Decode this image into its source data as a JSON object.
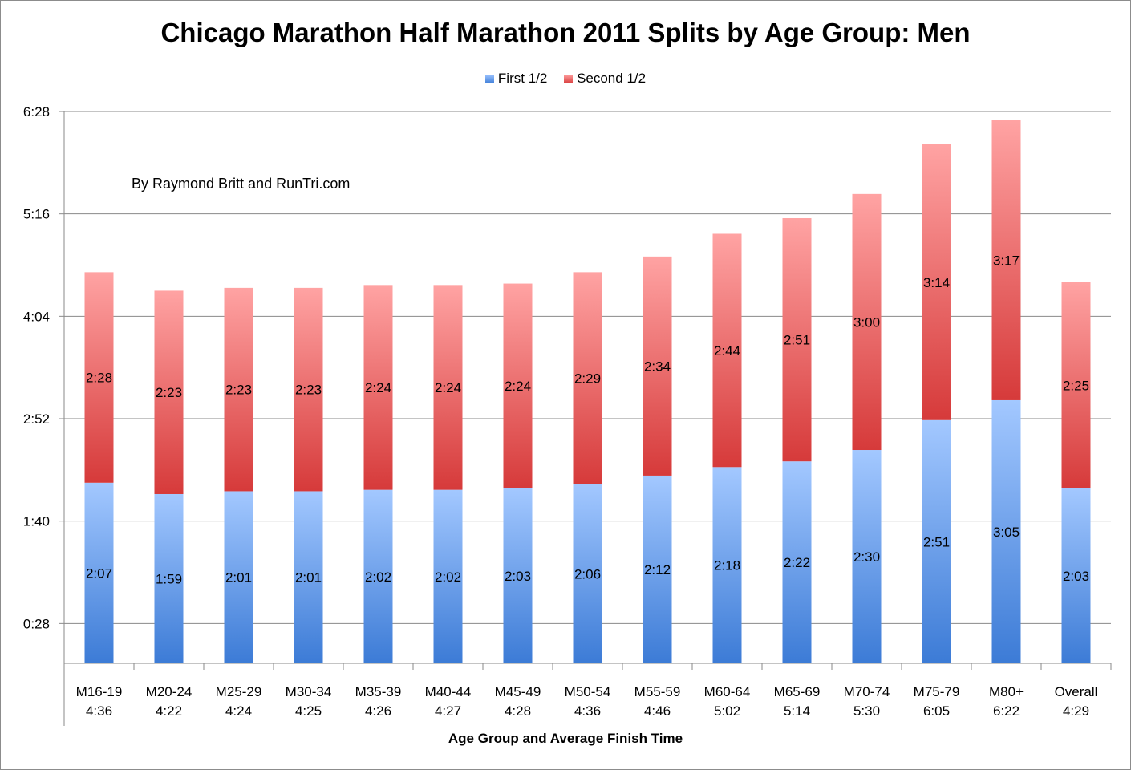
{
  "chart_data": {
    "type": "bar",
    "stacked": true,
    "title": "Chicago Marathon Half Marathon 2011 Splits by Age Group: Men",
    "xlabel": "Age Group and Average Finish Time",
    "ylabel": "",
    "annotation": "By Raymond Britt and RunTri.com",
    "legend_position": "top",
    "grid": true,
    "y_ticks": [
      "0:28",
      "1:40",
      "2:52",
      "4:04",
      "5:16",
      "6:28"
    ],
    "y_tick_minutes": [
      28,
      100,
      172,
      244,
      316,
      388
    ],
    "ylim_minutes": [
      0,
      388
    ],
    "categories": [
      "M16-19",
      "M20-24",
      "M25-29",
      "M30-34",
      "M35-39",
      "M40-44",
      "M45-49",
      "M50-54",
      "M55-59",
      "M60-64",
      "M65-69",
      "M70-74",
      "M75-79",
      "M80+",
      "Overall"
    ],
    "finish_times": [
      "4:36",
      "4:22",
      "4:24",
      "4:25",
      "4:26",
      "4:27",
      "4:28",
      "4:36",
      "4:46",
      "5:02",
      "5:14",
      "5:30",
      "6:05",
      "6:22",
      "4:29"
    ],
    "series": [
      {
        "name": "First 1/2",
        "color": "#5b8fe0",
        "labels": [
          "2:07",
          "1:59",
          "2:01",
          "2:01",
          "2:02",
          "2:02",
          "2:03",
          "2:06",
          "2:12",
          "2:18",
          "2:22",
          "2:30",
          "2:51",
          "3:05",
          "2:03"
        ],
        "values_minutes": [
          127,
          119,
          121,
          121,
          122,
          122,
          123,
          126,
          132,
          138,
          142,
          150,
          171,
          185,
          123
        ]
      },
      {
        "name": "Second 1/2",
        "color": "#e05555",
        "labels": [
          "2:28",
          "2:23",
          "2:23",
          "2:23",
          "2:24",
          "2:24",
          "2:24",
          "2:29",
          "2:34",
          "2:44",
          "2:51",
          "3:00",
          "3:14",
          "3:17",
          "2:25"
        ],
        "values_minutes": [
          148,
          143,
          143,
          143,
          144,
          144,
          144,
          149,
          154,
          164,
          171,
          180,
          194,
          197,
          145
        ]
      }
    ]
  }
}
